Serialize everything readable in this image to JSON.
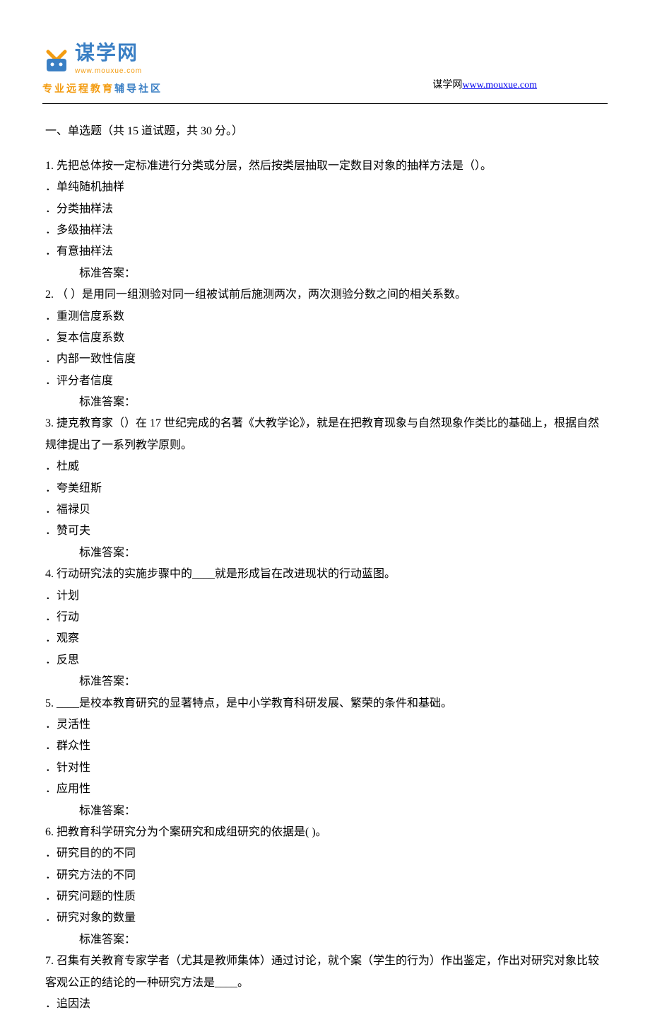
{
  "header": {
    "logo_chinese": "谋学网",
    "logo_url": "www.mouxue.com",
    "logo_subtitle_orange": "专业远程教育",
    "logo_subtitle_blue": "辅导社区",
    "site_label": "谋学网",
    "site_link": "www.mouxue.com"
  },
  "section": {
    "title": "一、单选题（共 15 道试题，共 30 分。）"
  },
  "questions": [
    {
      "number": "1.",
      "text": "  先把总体按一定标准进行分类或分层，然后按类层抽取一定数目对象的抽样方法是（）。",
      "options": [
        "．单纯随机抽样",
        "．分类抽样法",
        "．多级抽样法",
        "．有意抽样法"
      ],
      "answer": "标准答案："
    },
    {
      "number": "2.",
      "text": " （ ）是用同一组测验对同一组被试前后施测两次，两次测验分数之间的相关系数。",
      "options": [
        "．重测信度系数",
        "．复本信度系数",
        "．内部一致性信度",
        "．评分者信度"
      ],
      "answer": "标准答案："
    },
    {
      "number": "3.",
      "text": "  捷克教育家（）在 17 世纪完成的名著《大教学论》，就是在把教育现象与自然现象作类比的基础上，根据自然规律提出了一系列教学原则。",
      "options": [
        "．杜威",
        "．夸美纽斯",
        "．福禄贝",
        "．赞可夫"
      ],
      "answer": "标准答案："
    },
    {
      "number": "4.",
      "text": "  行动研究法的实施步骤中的____就是形成旨在改进现状的行动蓝图。",
      "options": [
        "．计划",
        "．行动",
        "．观察",
        "．反思"
      ],
      "answer": "标准答案："
    },
    {
      "number": "5.",
      "text": "  ____是校本教育研究的显著特点，是中小学教育科研发展、繁荣的条件和基础。",
      "options": [
        "．灵活性",
        "．群众性",
        "．针对性",
        "．应用性"
      ],
      "answer": "标准答案："
    },
    {
      "number": "6.",
      "text": "  把教育科学研究分为个案研究和成组研究的依据是( )。",
      "options": [
        "．研究目的的不同",
        "．研究方法的不同",
        "．研究问题的性质",
        "．研究对象的数量"
      ],
      "answer": "标准答案："
    },
    {
      "number": "7.",
      "text": "  召集有关教育专家学者（尤其是教师集体）通过讨论，就个案（学生的行为）作出鉴定，作出对研究对象比较客观公正的结论的一种研究方法是____。",
      "options": [
        "．追因法"
      ],
      "answer": ""
    }
  ],
  "colors": {
    "text": "#000000",
    "link": "#0000ee",
    "logo_blue": "#3a7fc4",
    "logo_orange": "#f39c12",
    "background": "#ffffff"
  }
}
